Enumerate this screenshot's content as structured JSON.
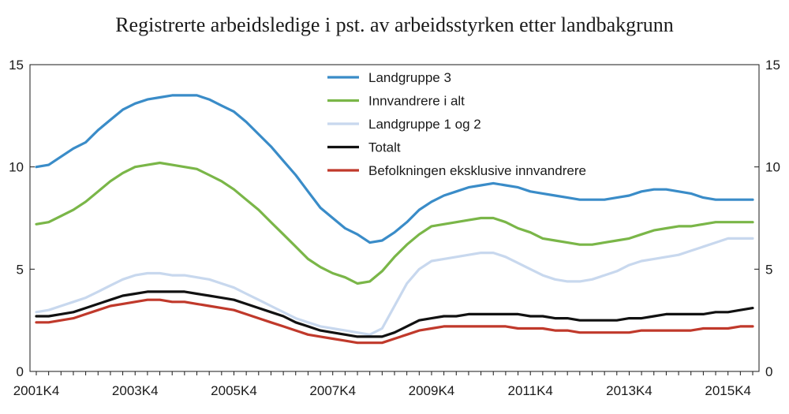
{
  "chart_data": {
    "type": "line",
    "title": "Registrerte arbeidsledige i pst. av arbeidsstyrken etter landbakgrunn",
    "xlabel": "",
    "ylabel": "",
    "ylim": [
      0,
      15
    ],
    "yticks": [
      0,
      5,
      10,
      15
    ],
    "x_tick_labels": [
      "2001K4",
      "2003K4",
      "2005K4",
      "2007K4",
      "2009K4",
      "2011K4",
      "2013K4",
      "2015K4"
    ],
    "x": [
      "2001K4",
      "2002K1",
      "2002K2",
      "2002K3",
      "2002K4",
      "2003K1",
      "2003K2",
      "2003K3",
      "2003K4",
      "2004K1",
      "2004K2",
      "2004K3",
      "2004K4",
      "2005K1",
      "2005K2",
      "2005K3",
      "2005K4",
      "2006K1",
      "2006K2",
      "2006K3",
      "2006K4",
      "2007K1",
      "2007K2",
      "2007K3",
      "2007K4",
      "2008K1",
      "2008K2",
      "2008K3",
      "2008K4",
      "2009K1",
      "2009K2",
      "2009K3",
      "2009K4",
      "2010K1",
      "2010K2",
      "2010K3",
      "2010K4",
      "2011K1",
      "2011K2",
      "2011K3",
      "2011K4",
      "2012K1",
      "2012K2",
      "2012K3",
      "2012K4",
      "2013K1",
      "2013K2",
      "2013K3",
      "2013K4",
      "2014K1",
      "2014K2",
      "2014K3",
      "2014K4",
      "2015K1",
      "2015K2",
      "2015K3",
      "2015K4",
      "2016K1",
      "2016K2"
    ],
    "grid": false,
    "legend_position": "top-center",
    "secondary_y_axis": true,
    "series": [
      {
        "name": "Landgruppe 3",
        "color": "#3a8cc8",
        "values": [
          10.0,
          10.1,
          10.5,
          10.9,
          11.2,
          11.8,
          12.3,
          12.8,
          13.1,
          13.3,
          13.4,
          13.5,
          13.5,
          13.5,
          13.3,
          13.0,
          12.7,
          12.2,
          11.6,
          11.0,
          10.3,
          9.6,
          8.8,
          8.0,
          7.5,
          7.0,
          6.7,
          6.3,
          6.4,
          6.8,
          7.3,
          7.9,
          8.3,
          8.6,
          8.8,
          9.0,
          9.1,
          9.2,
          9.1,
          9.0,
          8.8,
          8.7,
          8.6,
          8.5,
          8.4,
          8.4,
          8.4,
          8.5,
          8.6,
          8.8,
          8.9,
          8.9,
          8.8,
          8.7,
          8.5,
          8.4,
          8.4,
          8.4,
          8.4
        ]
      },
      {
        "name": "Innvandrere i alt",
        "color": "#7ab648",
        "values": [
          7.2,
          7.3,
          7.6,
          7.9,
          8.3,
          8.8,
          9.3,
          9.7,
          10.0,
          10.1,
          10.2,
          10.1,
          10.0,
          9.9,
          9.6,
          9.3,
          8.9,
          8.4,
          7.9,
          7.3,
          6.7,
          6.1,
          5.5,
          5.1,
          4.8,
          4.6,
          4.3,
          4.4,
          4.9,
          5.6,
          6.2,
          6.7,
          7.1,
          7.2,
          7.3,
          7.4,
          7.5,
          7.5,
          7.3,
          7.0,
          6.8,
          6.5,
          6.4,
          6.3,
          6.2,
          6.2,
          6.3,
          6.4,
          6.5,
          6.7,
          6.9,
          7.0,
          7.1,
          7.1,
          7.2,
          7.3,
          7.3,
          7.3,
          7.3
        ]
      },
      {
        "name": "Landgruppe 1 og 2",
        "color": "#c8d8ee",
        "values": [
          2.9,
          3.0,
          3.2,
          3.4,
          3.6,
          3.9,
          4.2,
          4.5,
          4.7,
          4.8,
          4.8,
          4.7,
          4.7,
          4.6,
          4.5,
          4.3,
          4.1,
          3.8,
          3.5,
          3.2,
          2.9,
          2.6,
          2.4,
          2.2,
          2.1,
          2.0,
          1.9,
          1.8,
          2.1,
          3.2,
          4.3,
          5.0,
          5.4,
          5.5,
          5.6,
          5.7,
          5.8,
          5.8,
          5.6,
          5.3,
          5.0,
          4.7,
          4.5,
          4.4,
          4.4,
          4.5,
          4.7,
          4.9,
          5.2,
          5.4,
          5.5,
          5.6,
          5.7,
          5.9,
          6.1,
          6.3,
          6.5,
          6.5,
          6.5
        ]
      },
      {
        "name": "Totalt",
        "color": "#111111",
        "values": [
          2.7,
          2.7,
          2.8,
          2.9,
          3.1,
          3.3,
          3.5,
          3.7,
          3.8,
          3.9,
          3.9,
          3.9,
          3.9,
          3.8,
          3.7,
          3.6,
          3.5,
          3.3,
          3.1,
          2.9,
          2.7,
          2.4,
          2.2,
          2.0,
          1.9,
          1.8,
          1.7,
          1.7,
          1.7,
          1.9,
          2.2,
          2.5,
          2.6,
          2.7,
          2.7,
          2.8,
          2.8,
          2.8,
          2.8,
          2.8,
          2.7,
          2.7,
          2.6,
          2.6,
          2.5,
          2.5,
          2.5,
          2.5,
          2.6,
          2.6,
          2.7,
          2.8,
          2.8,
          2.8,
          2.8,
          2.9,
          2.9,
          3.0,
          3.1
        ]
      },
      {
        "name": "Befolkningen eksklusive innvandrere",
        "color": "#c0392b",
        "values": [
          2.4,
          2.4,
          2.5,
          2.6,
          2.8,
          3.0,
          3.2,
          3.3,
          3.4,
          3.5,
          3.5,
          3.4,
          3.4,
          3.3,
          3.2,
          3.1,
          3.0,
          2.8,
          2.6,
          2.4,
          2.2,
          2.0,
          1.8,
          1.7,
          1.6,
          1.5,
          1.4,
          1.4,
          1.4,
          1.6,
          1.8,
          2.0,
          2.1,
          2.2,
          2.2,
          2.2,
          2.2,
          2.2,
          2.2,
          2.1,
          2.1,
          2.1,
          2.0,
          2.0,
          1.9,
          1.9,
          1.9,
          1.9,
          1.9,
          2.0,
          2.0,
          2.0,
          2.0,
          2.0,
          2.1,
          2.1,
          2.1,
          2.2,
          2.2
        ]
      }
    ]
  }
}
